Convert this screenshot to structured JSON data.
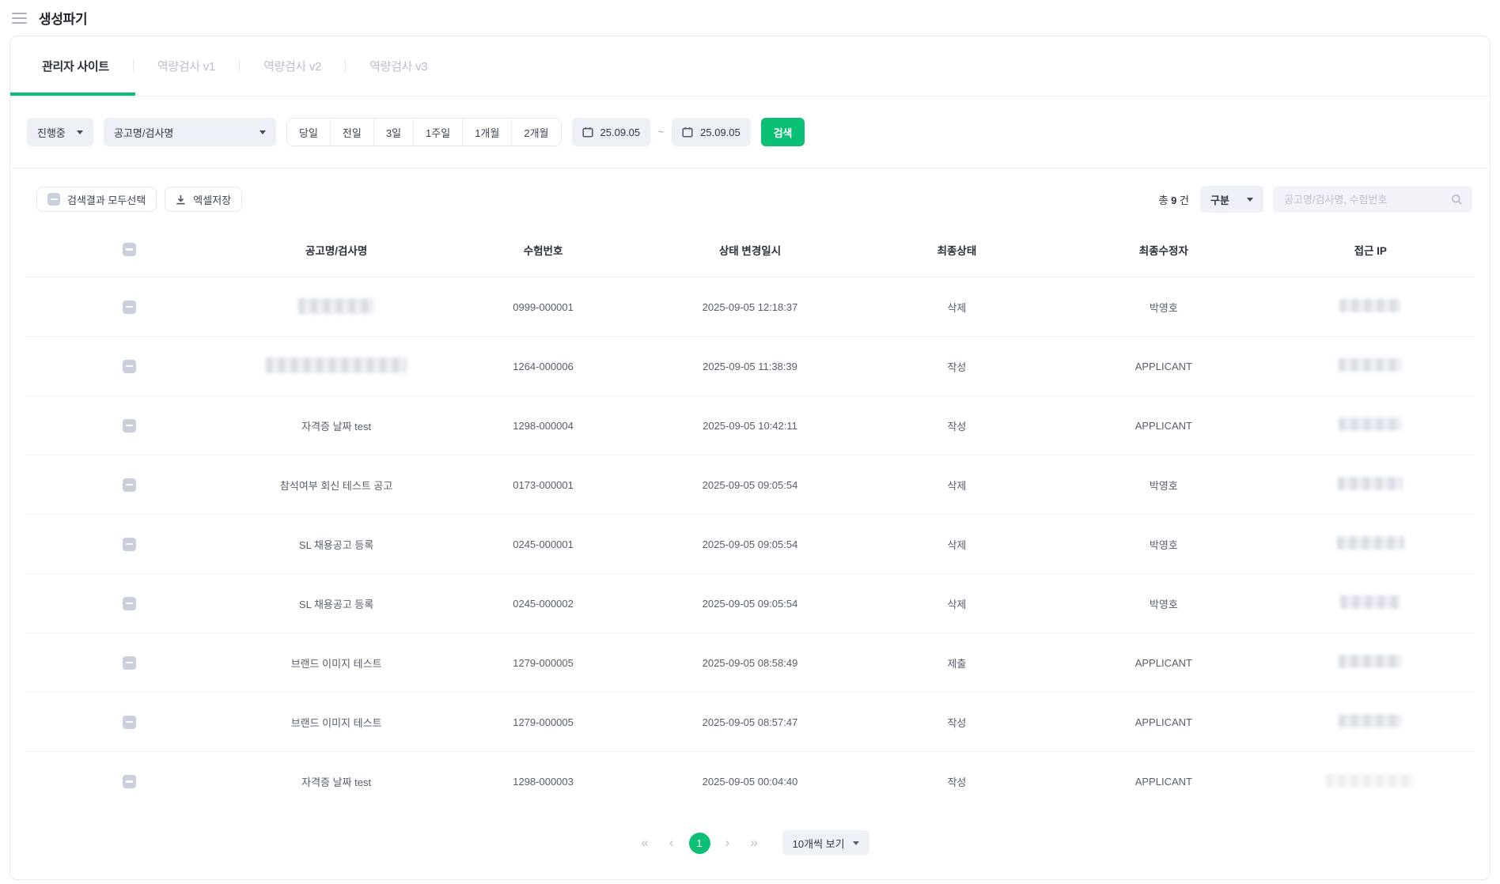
{
  "page": {
    "title": "생성파기"
  },
  "colors": {
    "accent": "#0bbf74",
    "control_bg": "#edf0f6",
    "border": "#e5e8ee",
    "inactive_tab": "#b9c0cb"
  },
  "icons": {
    "menu": "hamburger-icon",
    "calendar": "calendar-icon",
    "download": "download-icon",
    "search": "magnifier-icon",
    "caret": "chevron-down-icon",
    "checkbox": "indeterminate-checkbox-icon"
  },
  "tabs": [
    {
      "label": "관리자 사이트",
      "active": true
    },
    {
      "label": "역량검사 v1",
      "active": false
    },
    {
      "label": "역량검사 v2",
      "active": false
    },
    {
      "label": "역량검사 v3",
      "active": false
    }
  ],
  "filters": {
    "status_select": "진행중",
    "field_select": "공고명/검사명",
    "range_buttons": [
      "당일",
      "전일",
      "3일",
      "1주일",
      "1개월",
      "2개월"
    ],
    "date_from": "25.09.05",
    "date_tilde": "~",
    "date_to": "25.09.05",
    "search_button": "검색"
  },
  "toolbar": {
    "select_all_label": "검색결과 모두선택",
    "excel_label": "엑셀저장",
    "total_prefix": "총",
    "total_count": "9",
    "total_suffix": "건",
    "type_select": "구분",
    "search_placeholder": "공고명/검사명, 수험번호"
  },
  "table": {
    "columns": [
      "공고명/검사명",
      "수험번호",
      "상태 변경일시",
      "최종상태",
      "최종수정자",
      "접근 IP"
    ],
    "rows": [
      {
        "name": "",
        "name_masked": true,
        "name_mask_w": 96,
        "exam_no": "0999-000001",
        "changed_at": "2025-09-05 12:18:37",
        "status": "삭제",
        "modifier": "박영호",
        "ip_masked": true,
        "ip_mask_w": 78
      },
      {
        "name": "",
        "name_masked": true,
        "name_mask_w": 178,
        "exam_no": "1264-000006",
        "changed_at": "2025-09-05 11:38:39",
        "status": "작성",
        "modifier": "APPLICANT",
        "ip_masked": true,
        "ip_mask_w": 80
      },
      {
        "name": "자격증 날짜 test",
        "name_masked": false,
        "exam_no": "1298-000004",
        "changed_at": "2025-09-05 10:42:11",
        "status": "작성",
        "modifier": "APPLICANT",
        "ip_masked": true,
        "ip_mask_w": 80
      },
      {
        "name": "참석여부 회신 테스트 공고",
        "name_masked": false,
        "exam_no": "0173-000001",
        "changed_at": "2025-09-05 09:05:54",
        "status": "삭제",
        "modifier": "박영호",
        "ip_masked": true,
        "ip_mask_w": 82
      },
      {
        "name": "SL 채용공고 등록",
        "name_masked": false,
        "exam_no": "0245-000001",
        "changed_at": "2025-09-05 09:05:54",
        "status": "삭제",
        "modifier": "박영호",
        "ip_masked": true,
        "ip_mask_w": 85
      },
      {
        "name": "SL 채용공고 등록",
        "name_masked": false,
        "exam_no": "0245-000002",
        "changed_at": "2025-09-05 09:05:54",
        "status": "삭제",
        "modifier": "박영호",
        "ip_masked": true,
        "ip_mask_w": 76
      },
      {
        "name": "브랜드 이미지 테스트",
        "name_masked": false,
        "exam_no": "1279-000005",
        "changed_at": "2025-09-05 08:58:49",
        "status": "제출",
        "modifier": "APPLICANT",
        "ip_masked": true,
        "ip_mask_w": 80
      },
      {
        "name": "브랜드 이미지 테스트",
        "name_masked": false,
        "exam_no": "1279-000005",
        "changed_at": "2025-09-05 08:57:47",
        "status": "작성",
        "modifier": "APPLICANT",
        "ip_masked": true,
        "ip_mask_w": 80
      },
      {
        "name": "자격증 날짜 test",
        "name_masked": false,
        "exam_no": "1298-000003",
        "changed_at": "2025-09-05 00:04:40",
        "status": "작성",
        "modifier": "APPLICANT",
        "ip_masked": true,
        "ip_mask_w": 112,
        "ip_mask_light": true
      }
    ]
  },
  "pagination": {
    "first": "«",
    "prev": "‹",
    "current_page": "1",
    "next": "›",
    "last": "»",
    "page_size_label": "10개씩 보기"
  }
}
